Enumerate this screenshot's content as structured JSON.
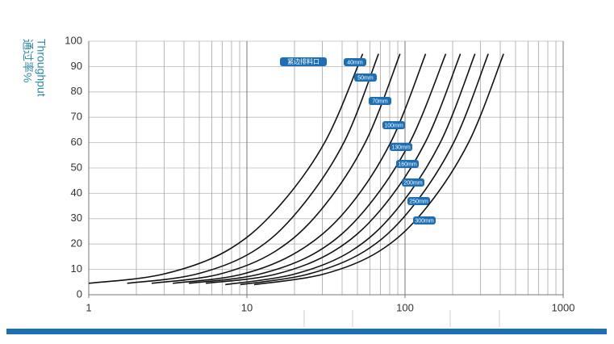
{
  "chart_data": {
    "type": "line",
    "y_label": "通过率%",
    "y_label_en": "Throughput",
    "annotation": "紧边排料口",
    "log_x": true,
    "grid": true,
    "color": "#111111",
    "label_color": "#1c6fb5",
    "xlim": [
      1,
      1000
    ],
    "xticks": [
      1,
      10,
      100,
      1000
    ],
    "ylim": [
      0,
      100
    ],
    "yticks": [
      0,
      10,
      20,
      30,
      40,
      50,
      60,
      70,
      80,
      90,
      100
    ],
    "series": [
      {
        "name": "40mm",
        "x": [
          1,
          2.9,
          7.3,
          15,
          31,
          54
        ],
        "values": [
          4.5,
          8,
          17,
          33,
          60,
          95
        ]
      },
      {
        "name": "50mm",
        "x": [
          1.75,
          4.7,
          10.9,
          21,
          41,
          68
        ],
        "values": [
          4.5,
          8,
          17,
          33,
          60,
          95
        ]
      },
      {
        "name": "70mm",
        "x": [
          2.5,
          6.6,
          15,
          29,
          56,
          93
        ],
        "values": [
          4.5,
          8,
          17,
          33,
          60,
          95
        ]
      },
      {
        "name": "100mm",
        "x": [
          3.4,
          9.2,
          21,
          42,
          81,
          135
        ],
        "values": [
          4.5,
          8,
          17,
          33,
          60,
          95
        ]
      },
      {
        "name": "130mm",
        "x": [
          4.3,
          11.8,
          28,
          55,
          107,
          181
        ],
        "values": [
          4.5,
          8,
          17,
          33,
          60,
          95
        ]
      },
      {
        "name": "160mm",
        "x": [
          5.5,
          15,
          35,
          69,
          134,
          224
        ],
        "values": [
          4.5,
          8,
          17,
          33,
          60,
          95
        ]
      },
      {
        "name": "200mm",
        "x": [
          7.3,
          19.6,
          45,
          87,
          167,
          277
        ],
        "values": [
          4,
          8,
          17,
          33,
          60,
          95
        ]
      },
      {
        "name": "250mm",
        "x": [
          9.1,
          24,
          55,
          106,
          203,
          336
        ],
        "values": [
          4,
          8,
          17,
          33,
          60,
          95
        ]
      },
      {
        "name": "300mm",
        "x": [
          11.1,
          30,
          68,
          131,
          252,
          420
        ],
        "values": [
          4,
          8,
          17,
          33,
          60,
          95
        ]
      }
    ]
  }
}
